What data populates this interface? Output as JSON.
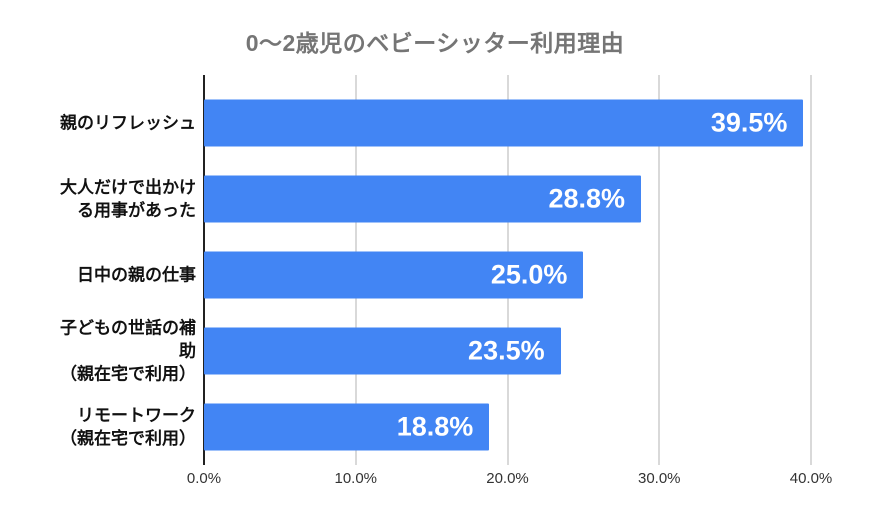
{
  "page": {
    "background": "#ffffff"
  },
  "chart_data": {
    "type": "bar",
    "orientation": "horizontal",
    "title": "0〜2歳児のベビーシッター利用理由",
    "categories": [
      "親のリフレッシュ",
      "大人だけで出かけ\nる用事があった",
      "日中の親の仕事",
      "子どもの世話の補\n助\n（親在宅で利用）",
      "リモートワーク\n（親在宅で利用）"
    ],
    "values": [
      39.5,
      28.8,
      25.0,
      23.5,
      18.8
    ],
    "value_labels": [
      "39.5%",
      "28.8%",
      "25.0%",
      "23.5%",
      "18.8%"
    ],
    "xlabel": "",
    "ylabel": "",
    "xlim": [
      0,
      40
    ],
    "x_ticks": [
      "0.0%",
      "10.0%",
      "20.0%",
      "30.0%",
      "40.0%"
    ],
    "grid": "vertical-gridlines",
    "legend": "none",
    "colors": {
      "bar": "#4285F4",
      "value_label": "#ffffff",
      "title": "#757575",
      "category_label": "#111111",
      "tick_label": "#333333",
      "gridline": "#d9d9d9",
      "axis_line": "#212121"
    }
  }
}
